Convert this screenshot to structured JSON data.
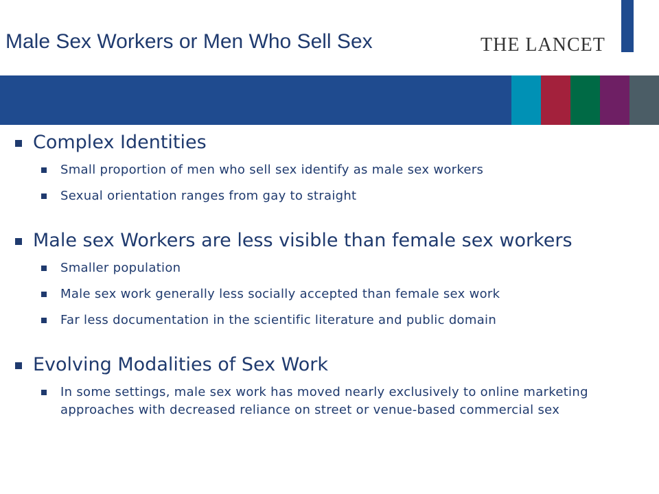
{
  "header": {
    "title": "Male Sex Workers or Men Who Sell Sex",
    "logo": "THE LANCET"
  },
  "sections": [
    {
      "heading": "Complex Identities",
      "items": [
        "Small proportion of men who sell sex identify as male sex workers",
        "Sexual orientation ranges from gay to straight"
      ]
    },
    {
      "heading": "Male sex Workers are less visible than female sex workers",
      "items": [
        "Smaller population",
        "Male sex work generally less socially accepted than female sex work",
        "Far less documentation in the scientific literature and public domain"
      ]
    },
    {
      "heading": "Evolving Modalities of Sex Work",
      "items": [
        "In some settings, male sex work has moved nearly exclusively to online marketing approaches with decreased reliance on street or venue-based commercial sex"
      ]
    }
  ]
}
